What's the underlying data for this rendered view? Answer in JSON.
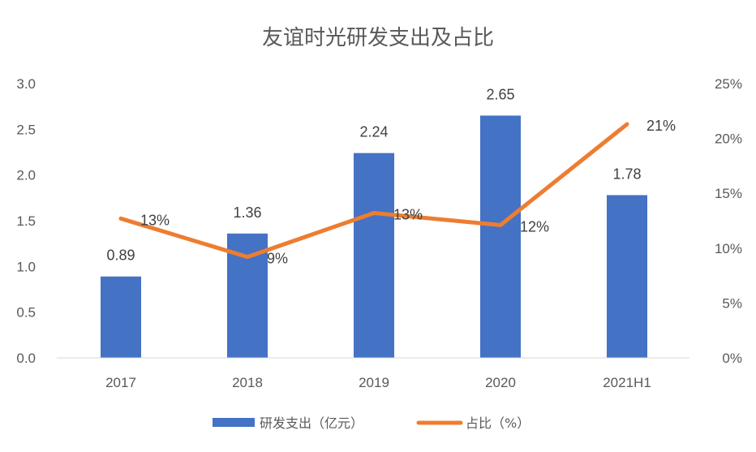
{
  "chart_data": {
    "type": "bar+line",
    "title": "友谊时光研发支出及占比",
    "categories": [
      "2017",
      "2018",
      "2019",
      "2020",
      "2021H1"
    ],
    "series": [
      {
        "name": "研发支出（亿元）",
        "type": "bar",
        "axis": "left",
        "values": [
          0.89,
          1.36,
          2.24,
          2.65,
          1.78
        ],
        "labels": [
          "0.89",
          "1.36",
          "2.24",
          "2.65",
          "1.78"
        ],
        "color": "#4472C4"
      },
      {
        "name": "占比（%）",
        "type": "line",
        "axis": "right",
        "values": [
          12.7,
          9.2,
          13.2,
          12.1,
          21.3
        ],
        "labels": [
          "13%",
          "9%",
          "13%",
          "12%",
          "21%"
        ],
        "color": "#ED7D31"
      }
    ],
    "y_left": {
      "range": [
        0,
        3.0
      ],
      "ticks": [
        "0.0",
        "0.5",
        "1.0",
        "1.5",
        "2.0",
        "2.5",
        "3.0"
      ]
    },
    "y_right": {
      "range": [
        0,
        25
      ],
      "ticks": [
        "0%",
        "5%",
        "10%",
        "15%",
        "20%",
        "25%"
      ]
    },
    "grid": false,
    "legend": "bottom"
  }
}
